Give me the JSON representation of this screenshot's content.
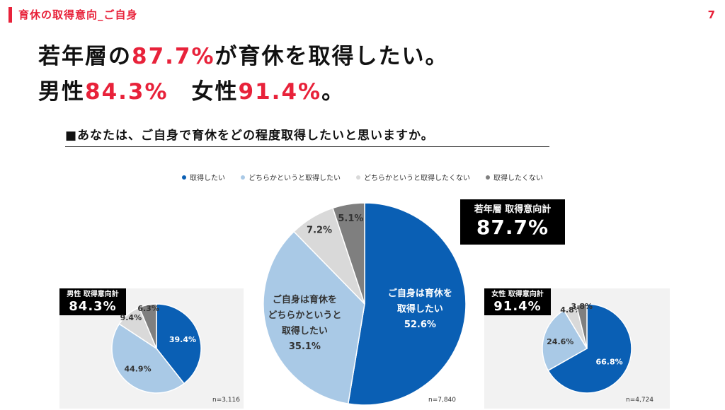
{
  "header": {
    "section_title": "育休の取得意向_ご自身",
    "page_number": "7"
  },
  "headline": {
    "line1_a": "若年層の",
    "line1_b": "87.7%",
    "line1_c": "が育休を取得したい。",
    "line2_a": "男性",
    "line2_b": "84.3%",
    "line2_c": "　女性",
    "line2_d": "91.4%",
    "line2_e": "。"
  },
  "question": "■あなたは、ご自身で育休をどの程度取得したいと思いますか。",
  "colors": {
    "accent": "#e8223a",
    "want": "#0a5fb4",
    "somewhat_want": "#a9c9e6",
    "somewhat_not": "#d9d9d9",
    "not_want": "#7f7f7f",
    "panel": "#f2f2f2"
  },
  "legend": [
    {
      "label": "取得したい",
      "color": "#0a5fb4"
    },
    {
      "label": "どちらかというと取得したい",
      "color": "#a9c9e6"
    },
    {
      "label": "どちらかというと取得したくない",
      "color": "#d9d9d9"
    },
    {
      "label": "取得したくない",
      "color": "#7f7f7f"
    }
  ],
  "chart_data": [
    {
      "type": "pie",
      "id": "male",
      "categories": [
        "取得したい",
        "どちらかというと取得したい",
        "どちらかというと取得したくない",
        "取得したくない"
      ],
      "values": [
        39.4,
        44.9,
        9.4,
        6.3
      ],
      "labels": [
        "39.4%",
        "44.9%",
        "9.4%",
        "6.3%"
      ],
      "total_label": "男性 取得意向計",
      "total_value": "84.3%",
      "n": "n=3,116"
    },
    {
      "type": "pie",
      "id": "all",
      "categories": [
        "取得したい",
        "どちらかというと取得したい",
        "どちらかというと取得したくない",
        "取得したくない"
      ],
      "values": [
        52.6,
        35.1,
        7.2,
        5.1
      ],
      "labels": [
        "ご自身は育休を\n取得したい\n52.6%",
        "ご自身は育休を\nどちらかというと\n取得したい\n35.1%",
        "7.2%",
        "5.1%"
      ],
      "total_label": "若年層 取得意向計",
      "total_value": "87.7%",
      "n": "n=7,840"
    },
    {
      "type": "pie",
      "id": "female",
      "categories": [
        "取得したい",
        "どちらかというと取得したい",
        "どちらかというと取得したくない",
        "取得したくない"
      ],
      "values": [
        66.8,
        24.6,
        4.8,
        3.8
      ],
      "labels": [
        "66.8%",
        "24.6%",
        "4.8%",
        "3.8%"
      ],
      "total_label": "女性 取得意向計",
      "total_value": "91.4%",
      "n": "n=4,724"
    }
  ]
}
